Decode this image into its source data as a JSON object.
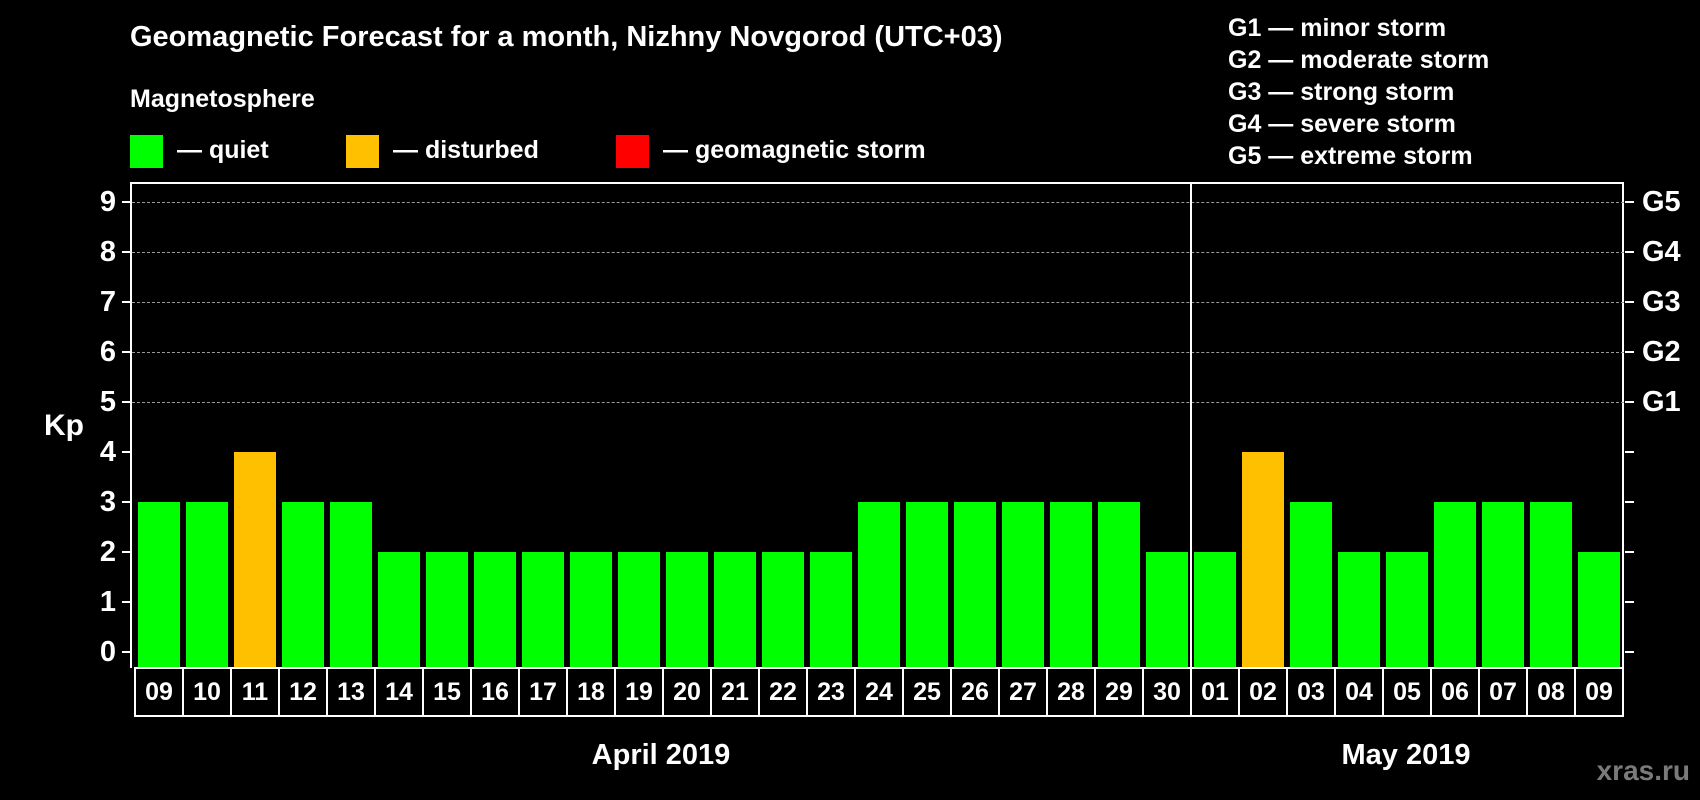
{
  "header": {
    "title": "Geomagnetic Forecast for a month, Nizhny Novgorod (UTC+03)",
    "section_label": "Magnetosphere"
  },
  "legend": {
    "items": [
      {
        "label": "— quiet",
        "color": "#00ff00"
      },
      {
        "label": "— disturbed",
        "color": "#ffc000"
      },
      {
        "label": "— geomagnetic storm",
        "color": "#ff0000"
      }
    ]
  },
  "gscale": [
    "G1 — minor storm",
    "G2 — moderate storm",
    "G3 — strong storm",
    "G4 — severe storm",
    "G5 — extreme storm"
  ],
  "axis": {
    "ylabel": "Kp",
    "yticks": [
      "0",
      "1",
      "2",
      "3",
      "4",
      "5",
      "6",
      "7",
      "8",
      "9"
    ],
    "right_labels": {
      "5": "G1",
      "6": "G2",
      "7": "G3",
      "8": "G4",
      "9": "G5"
    }
  },
  "months": [
    {
      "label": "April 2019"
    },
    {
      "label": "May 2019"
    }
  ],
  "watermark": "xras.ru",
  "colors": {
    "quiet": "#00ff00",
    "disturbed": "#ffc000",
    "storm": "#ff0000",
    "background": "#000000"
  },
  "chart_data": {
    "type": "bar",
    "title": "Geomagnetic Forecast for a month, Nizhny Novgorod (UTC+03)",
    "xlabel": "April 2019 / May 2019",
    "ylabel": "Kp",
    "ylim": [
      0,
      9
    ],
    "grid": true,
    "categories": [
      "09",
      "10",
      "11",
      "12",
      "13",
      "14",
      "15",
      "16",
      "17",
      "18",
      "19",
      "20",
      "21",
      "22",
      "23",
      "24",
      "25",
      "26",
      "27",
      "28",
      "29",
      "30",
      "01",
      "02",
      "03",
      "04",
      "05",
      "06",
      "07",
      "08",
      "09"
    ],
    "values": [
      3,
      3,
      4,
      3,
      3,
      2,
      2,
      2,
      2,
      2,
      2,
      2,
      2,
      2,
      2,
      3,
      3,
      3,
      3,
      3,
      3,
      2,
      2,
      4,
      3,
      2,
      2,
      3,
      3,
      3,
      2
    ],
    "status": [
      "quiet",
      "quiet",
      "disturbed",
      "quiet",
      "quiet",
      "quiet",
      "quiet",
      "quiet",
      "quiet",
      "quiet",
      "quiet",
      "quiet",
      "quiet",
      "quiet",
      "quiet",
      "quiet",
      "quiet",
      "quiet",
      "quiet",
      "quiet",
      "quiet",
      "quiet",
      "quiet",
      "disturbed",
      "quiet",
      "quiet",
      "quiet",
      "quiet",
      "quiet",
      "quiet",
      "quiet"
    ],
    "months": [
      {
        "label": "April 2019",
        "start_index": 0,
        "end_index": 21
      },
      {
        "label": "May 2019",
        "start_index": 22,
        "end_index": 30
      }
    ],
    "legend": [
      "quiet",
      "disturbed",
      "geomagnetic storm"
    ],
    "right_axis": {
      "5": "G1",
      "6": "G2",
      "7": "G3",
      "8": "G4",
      "9": "G5"
    }
  }
}
